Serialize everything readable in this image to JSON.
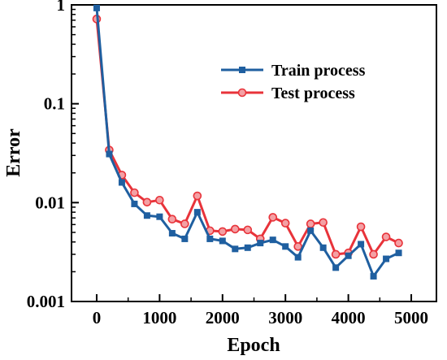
{
  "chart_data": {
    "type": "line",
    "title": "",
    "xlabel": "Epoch",
    "ylabel": "Error",
    "x_scale": "linear",
    "y_scale": "log",
    "xlim": [
      -400,
      5400
    ],
    "ylim": [
      0.001,
      1
    ],
    "x_ticks": [
      0,
      1000,
      2000,
      3000,
      4000,
      5000
    ],
    "x_tick_labels": [
      "0",
      "1000",
      "2000",
      "3000",
      "4000",
      "5000"
    ],
    "y_ticks": [
      0.001,
      0.01,
      0.1,
      1
    ],
    "y_tick_labels": [
      "0.001",
      "0.01",
      "0.1",
      "1"
    ],
    "grid": false,
    "legend_position": "top-right",
    "x": [
      0,
      200,
      400,
      600,
      800,
      1000,
      1200,
      1400,
      1600,
      1800,
      2000,
      2200,
      2400,
      2600,
      2800,
      3000,
      3200,
      3400,
      3600,
      3800,
      4000,
      4200,
      4400,
      4600,
      4800
    ],
    "series": [
      {
        "name": "Train process",
        "color": "#1f5fa0",
        "marker": "square",
        "values": [
          0.93,
          0.031,
          0.016,
          0.0097,
          0.0074,
          0.0072,
          0.0049,
          0.0043,
          0.008,
          0.0043,
          0.0041,
          0.0034,
          0.0035,
          0.0039,
          0.0042,
          0.0036,
          0.0028,
          0.0052,
          0.0035,
          0.0022,
          0.0029,
          0.0038,
          0.0018,
          0.0027,
          0.0031
        ]
      },
      {
        "name": "Test process",
        "color": "#e8333a",
        "marker": "circle",
        "values": [
          0.72,
          0.034,
          0.019,
          0.0126,
          0.0101,
          0.0106,
          0.0068,
          0.0061,
          0.0117,
          0.0052,
          0.0051,
          0.0054,
          0.0053,
          0.0043,
          0.0071,
          0.0062,
          0.0036,
          0.0061,
          0.0063,
          0.003,
          0.0031,
          0.0057,
          0.003,
          0.0045,
          0.0039
        ]
      }
    ]
  }
}
